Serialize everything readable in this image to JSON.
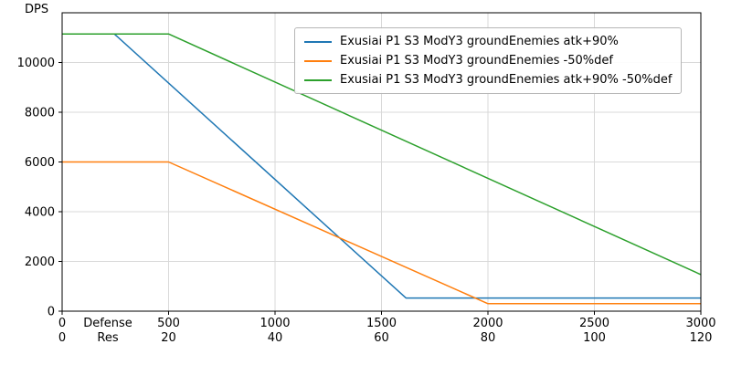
{
  "chart_data": {
    "type": "line",
    "title": "",
    "ylabel": "DPS",
    "xlabel_rows": [
      "Defense",
      "Res"
    ],
    "xlim": [
      0,
      3000
    ],
    "ylim": [
      0,
      12000
    ],
    "x_ticks": [
      0,
      500,
      1000,
      1500,
      2000,
      2500,
      3000
    ],
    "x_ticks_secondary": [
      0,
      20,
      40,
      60,
      80,
      100,
      120
    ],
    "y_ticks": [
      0,
      2000,
      4000,
      6000,
      8000,
      10000
    ],
    "grid": true,
    "legend_position": "upper right",
    "series": [
      {
        "name": "Exusiai P1 S3 ModY3 groundEnemies atk+90%",
        "color": "#1f77b4",
        "points": [
          [
            0,
            11150
          ],
          [
            245,
            11150
          ],
          [
            1615,
            530
          ],
          [
            3000,
            530
          ]
        ]
      },
      {
        "name": "Exusiai P1 S3 ModY3 groundEnemies -50%def",
        "color": "#ff7f0e",
        "points": [
          [
            0,
            6000
          ],
          [
            500,
            6000
          ],
          [
            2000,
            300
          ],
          [
            3000,
            300
          ]
        ]
      },
      {
        "name": "Exusiai P1 S3 ModY3 groundEnemies atk+90% -50%def",
        "color": "#2ca02c",
        "points": [
          [
            0,
            11150
          ],
          [
            500,
            11150
          ],
          [
            3000,
            1470
          ]
        ]
      }
    ]
  }
}
